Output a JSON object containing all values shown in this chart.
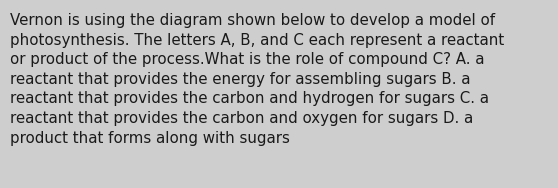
{
  "text": "Vernon is using the diagram shown below to develop a model of\nphotosynthesis. The letters A, B, and C each represent a reactant\nor product of the process.What is the role of compound C? A. a\nreactant that provides the energy for assembling sugars B. a\nreactant that provides the carbon and hydrogen for sugars C. a\nreactant that provides the carbon and oxygen for sugars D. a\nproduct that forms along with sugars",
  "background_color": "#cecece",
  "text_color": "#1a1a1a",
  "font_size": 10.8,
  "fig_width": 5.58,
  "fig_height": 1.88,
  "dpi": 100
}
